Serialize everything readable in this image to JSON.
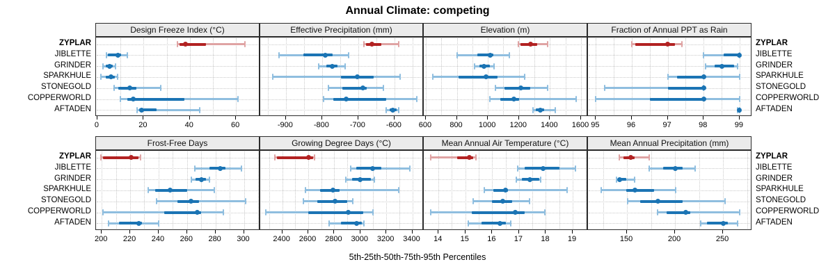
{
  "chart_data": {
    "type": "scatter",
    "variant": "percentile-dot-whisker-trellis",
    "title": "Annual Climate: competing",
    "caption": "5th-25th-50th-75th-95th Percentiles",
    "percentile_labels": [
      "5th",
      "25th",
      "50th",
      "75th",
      "95th"
    ],
    "categories": [
      "ZYPLAR",
      "JIBLETTE",
      "GRINDER",
      "SPARKHULE",
      "STONEGOLD",
      "COPPERWORLD",
      "AFTADEN"
    ],
    "highlight_category": "ZYPLAR",
    "legend_position": "none",
    "grid": "dotted",
    "colors": {
      "highlight_dark": "#B22222",
      "highlight_light": "#DFA3A3",
      "normal_dark": "#1B74B4",
      "normal_light": "#8FBEDF",
      "strip_bg": "#ebebeb",
      "gridline": "#c9c9c9",
      "border": "#2b2b2b"
    },
    "panels": [
      {
        "title": "Design Freeze Index (°C)",
        "row": 0,
        "col": 0,
        "ticks": [
          0,
          20,
          40,
          60
        ],
        "grid_step": 10,
        "xlim": [
          -0.6,
          70.5
        ],
        "series": [
          {
            "name": "ZYPLAR",
            "values": [
              34.5,
              35.5,
              38,
              47,
              64
            ]
          },
          {
            "name": "JIBLETTE",
            "values": [
              3.8,
              4.5,
              9,
              10.2,
              13.1
            ]
          },
          {
            "name": "GRINDER",
            "values": [
              2.4,
              3.6,
              5.3,
              6.7,
              7.7
            ]
          },
          {
            "name": "SPARKHULE",
            "values": [
              1.5,
              3.5,
              6,
              7.5,
              8.7
            ]
          },
          {
            "name": "STONEGOLD",
            "values": [
              7.3,
              8.9,
              13.9,
              16.9,
              27.5
            ]
          },
          {
            "name": "COPPERWORLD",
            "values": [
              9.9,
              13,
              15.4,
              37.7,
              61
            ]
          },
          {
            "name": "AFTADEN",
            "values": [
              17.3,
              18,
              19,
              25.6,
              44.4
            ]
          }
        ]
      },
      {
        "title": "Effective Precipitation (mm)",
        "row": 0,
        "col": 1,
        "ticks": [
          -900,
          -800,
          -700,
          -600
        ],
        "grid_step": 50,
        "xlim": [
          -971,
          -519
        ],
        "series": [
          {
            "name": "ZYPLAR",
            "values": [
              -685,
              -678,
              -663,
              -636,
              -588
            ]
          },
          {
            "name": "JIBLETTE",
            "values": [
              -920,
              -852,
              -792,
              -770,
              -726
            ]
          },
          {
            "name": "GRINDER",
            "values": [
              -809,
              -788,
              -772,
              -757,
              -737
            ]
          },
          {
            "name": "SPARKHULE",
            "values": [
              -937,
              -748,
              -702,
              -658,
              -585
            ]
          },
          {
            "name": "STONEGOLD",
            "values": [
              -783,
              -744,
              -688,
              -677,
              -630
            ]
          },
          {
            "name": "COPPERWORLD",
            "values": [
              -796,
              -769,
              -733,
              -623,
              -539
            ]
          },
          {
            "name": "AFTADEN",
            "values": [
              -623,
              -613,
              -604,
              -594,
              -588
            ]
          }
        ]
      },
      {
        "title": "Elevation (m)",
        "row": 0,
        "col": 2,
        "ticks": [
          600,
          800,
          1000,
          1200,
          1400,
          1600
        ],
        "grid_step": 100,
        "xlim": [
          587,
          1645
        ],
        "series": [
          {
            "name": "ZYPLAR",
            "values": [
              1197,
              1212,
              1275,
              1316,
              1386
            ]
          },
          {
            "name": "JIBLETTE",
            "values": [
              800,
              932,
              1016,
              1037,
              1138
            ]
          },
          {
            "name": "GRINDER",
            "values": [
              915,
              944,
              974,
              1011,
              1041
            ]
          },
          {
            "name": "SPARKHULE",
            "values": [
              647,
              810,
              986,
              1063,
              1237
            ]
          },
          {
            "name": "STONEGOLD",
            "values": [
              1048,
              1108,
              1212,
              1275,
              1386
            ]
          },
          {
            "name": "COPPERWORLD",
            "values": [
              1011,
              1078,
              1168,
              1202,
              1569
            ]
          },
          {
            "name": "AFTADEN",
            "values": [
              1290,
              1309,
              1339,
              1361,
              1435
            ]
          }
        ]
      },
      {
        "title": "Fraction of Annual PPT as Rain",
        "row": 0,
        "col": 3,
        "ticks": [
          95,
          96,
          97,
          98,
          99
        ],
        "grid_step": 0.5,
        "xlim": [
          94.78,
          99.35
        ],
        "series": [
          {
            "name": "ZYPLAR",
            "values": [
              96.0,
              96.1,
              97.0,
              97.2,
              97.4
            ]
          },
          {
            "name": "JIBLETTE",
            "values": [
              98.0,
              98.55,
              99.0,
              99.0,
              99.0
            ]
          },
          {
            "name": "GRINDER",
            "values": [
              98.05,
              98.3,
              98.5,
              98.85,
              98.95
            ]
          },
          {
            "name": "SPARKHULE",
            "values": [
              97.0,
              97.25,
              98.0,
              98.02,
              99.0
            ]
          },
          {
            "name": "STONEGOLD",
            "values": [
              95.25,
              97.0,
              98.0,
              98.0,
              98.0
            ]
          },
          {
            "name": "COPPERWORLD",
            "values": [
              95.0,
              96.5,
              98.0,
              98.05,
              99.0
            ]
          },
          {
            "name": "AFTADEN",
            "values": [
              98.95,
              98.98,
              99.0,
              99.0,
              99.0
            ]
          }
        ]
      },
      {
        "title": "Frost-Free Days",
        "row": 1,
        "col": 0,
        "ticks": [
          200,
          220,
          240,
          260,
          280,
          300
        ],
        "grid_step": 10,
        "xlim": [
          196,
          311.5
        ],
        "series": [
          {
            "name": "ZYPLAR",
            "values": [
              199.5,
              201,
              220.5,
              226,
              227.5
            ]
          },
          {
            "name": "JIBLETTE",
            "values": [
              265.5,
              276,
              283.5,
              287,
              298.5
            ]
          },
          {
            "name": "GRINDER",
            "values": [
              263,
              266,
              270,
              273.5,
              276
            ]
          },
          {
            "name": "SPARKHULE",
            "values": [
              232.5,
              237.5,
              248,
              260,
              279
            ]
          },
          {
            "name": "STONEGOLD",
            "values": [
              238.5,
              253.5,
              263,
              268.5,
              301
            ]
          },
          {
            "name": "COPPERWORLD",
            "values": [
              201,
              244,
              267,
              270,
              285.5
            ]
          },
          {
            "name": "AFTADEN",
            "values": [
              205,
              212,
              226,
              228.5,
              240
            ]
          }
        ]
      },
      {
        "title": "Growing Degree Days (°C)",
        "row": 1,
        "col": 1,
        "ticks": [
          2400,
          2600,
          2800,
          3000,
          3200,
          3400
        ],
        "grid_step": 100,
        "xlim": [
          2231,
          3488
        ],
        "series": [
          {
            "name": "ZYPLAR",
            "values": [
              2343,
              2360,
              2605,
              2640,
              2650
            ]
          },
          {
            "name": "JIBLETTE",
            "values": [
              2925,
              2970,
              3095,
              3160,
              3380
            ]
          },
          {
            "name": "GRINDER",
            "values": [
              2890,
              2935,
              3000,
              3080,
              3110
            ]
          },
          {
            "name": "SPARKHULE",
            "values": [
              2580,
              2690,
              2790,
              2840,
              3295
            ]
          },
          {
            "name": "STONEGOLD",
            "values": [
              2560,
              2670,
              2805,
              2900,
              2940
            ]
          },
          {
            "name": "COPPERWORLD",
            "values": [
              2275,
              2600,
              2905,
              3025,
              3100
            ]
          },
          {
            "name": "AFTADEN",
            "values": [
              2760,
              2850,
              2970,
              3010,
              3030
            ]
          }
        ]
      },
      {
        "title": "Mean Annual Air Temperature (°C)",
        "row": 1,
        "col": 2,
        "ticks": [
          14,
          15,
          16,
          17,
          18,
          19
        ],
        "grid_step": 0.5,
        "xlim": [
          13.45,
          19.57
        ],
        "series": [
          {
            "name": "ZYPLAR",
            "values": [
              13.7,
              14.7,
              15.15,
              15.3,
              15.4
            ]
          },
          {
            "name": "JIBLETTE",
            "values": [
              16.95,
              17.2,
              17.9,
              18.5,
              19.1
            ]
          },
          {
            "name": "GRINDER",
            "values": [
              16.9,
              17.1,
              17.4,
              17.75,
              17.8
            ]
          },
          {
            "name": "SPARKHULE",
            "values": [
              15.7,
              16.05,
              16.5,
              16.6,
              18.8
            ]
          },
          {
            "name": "STONEGOLD",
            "values": [
              15.3,
              16.0,
              16.4,
              16.75,
              17.4
            ]
          },
          {
            "name": "COPPERWORLD",
            "values": [
              13.7,
              15.25,
              16.85,
              17.2,
              17.95
            ]
          },
          {
            "name": "AFTADEN",
            "values": [
              15.1,
              15.6,
              16.3,
              16.5,
              16.7
            ]
          }
        ]
      },
      {
        "title": "Mean Annual Precipitation (mm)",
        "row": 1,
        "col": 3,
        "ticks": [
          150,
          200,
          250
        ],
        "grid_step": 25,
        "xlim": [
          109.4,
          280.4
        ],
        "series": [
          {
            "name": "ZYPLAR",
            "values": [
              142,
              146,
              154,
              158,
              173
            ]
          },
          {
            "name": "JIBLETTE",
            "values": [
              173,
              188,
              200.5,
              208,
              221
            ]
          },
          {
            "name": "GRINDER",
            "values": [
              139,
              141,
              142.5,
              149,
              158
            ]
          },
          {
            "name": "SPARKHULE",
            "values": [
              123.5,
              149,
              158,
              178,
              200.5
            ]
          },
          {
            "name": "STONEGOLD",
            "values": [
              151,
              164,
              182,
              208,
              252
            ]
          },
          {
            "name": "COPPERWORLD",
            "values": [
              182,
              191,
              211,
              216,
              267
            ]
          },
          {
            "name": "AFTADEN",
            "values": [
              227,
              233,
              250,
              255,
              265
            ]
          }
        ]
      }
    ]
  }
}
